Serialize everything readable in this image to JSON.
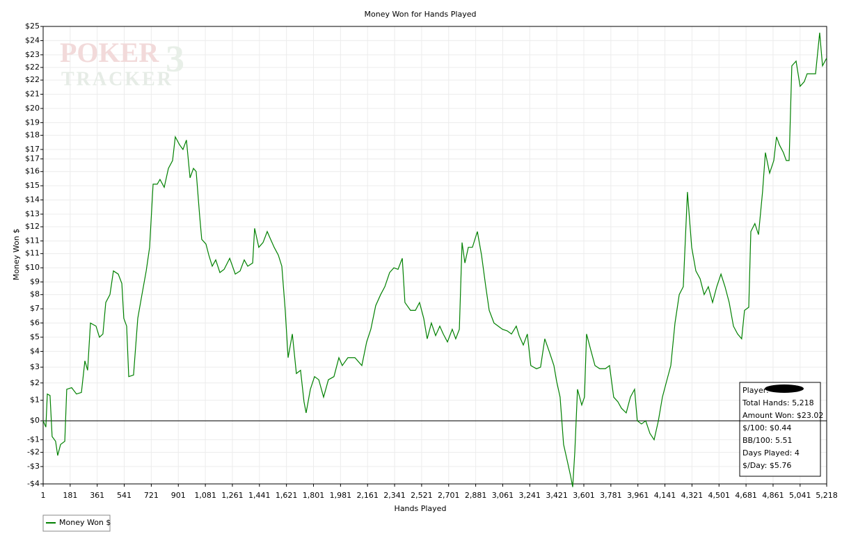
{
  "chart_data": {
    "type": "line",
    "title": "Money Won for Hands Played",
    "xlabel": "Hands Played",
    "ylabel": "Money Won $",
    "watermark": [
      "POKER",
      "TRACKER",
      "3"
    ],
    "xlim": [
      1,
      5218
    ],
    "ylim": [
      -4,
      25
    ],
    "xticks": [
      1,
      181,
      361,
      541,
      721,
      901,
      {
        "value": 1081,
        "label": "1,081"
      },
      {
        "value": 1261,
        "label": "1,261"
      },
      {
        "value": 1441,
        "label": "1,441"
      },
      {
        "value": 1621,
        "label": "1,621"
      },
      {
        "value": 1801,
        "label": "1,801"
      },
      {
        "value": 1981,
        "label": "1,981"
      },
      {
        "value": 2161,
        "label": "2,161"
      },
      {
        "value": 2341,
        "label": "2,341"
      },
      {
        "value": 2521,
        "label": "2,521"
      },
      {
        "value": 2701,
        "label": "2,701"
      },
      {
        "value": 2881,
        "label": "2,881"
      },
      {
        "value": 3061,
        "label": "3,061"
      },
      {
        "value": 3241,
        "label": "3,241"
      },
      {
        "value": 3421,
        "label": "3,421"
      },
      {
        "value": 3601,
        "label": "3,601"
      },
      {
        "value": 3781,
        "label": "3,781"
      },
      {
        "value": 3961,
        "label": "3,961"
      },
      {
        "value": 4141,
        "label": "4,141"
      },
      {
        "value": 4321,
        "label": "4,321"
      },
      {
        "value": 4501,
        "label": "4,501"
      },
      {
        "value": 4681,
        "label": "4,681"
      },
      {
        "value": 4861,
        "label": "4,861"
      },
      {
        "value": 5041,
        "label": "5,041"
      },
      {
        "value": 5218,
        "label": "5,218"
      }
    ],
    "yticks": [
      {
        "value": 25,
        "label": "$25"
      },
      {
        "value": 24.1,
        "label": "$24"
      },
      {
        "value": 23.2,
        "label": "$23"
      },
      {
        "value": 22.4,
        "label": "$22"
      },
      {
        "value": 21.6,
        "label": "$22"
      },
      {
        "value": 20.7,
        "label": "$21"
      },
      {
        "value": 19.8,
        "label": "$20"
      },
      {
        "value": 18.9,
        "label": "$19"
      },
      {
        "value": 18.1,
        "label": "$18"
      },
      {
        "value": 17.2,
        "label": "$17"
      },
      {
        "value": 16.6,
        "label": "$17"
      },
      {
        "value": 15.8,
        "label": "$16"
      },
      {
        "value": 14.9,
        "label": "$15"
      },
      {
        "value": 14,
        "label": "$14"
      },
      {
        "value": 13.1,
        "label": "$13"
      },
      {
        "value": 12.3,
        "label": "$12"
      },
      {
        "value": 11.4,
        "label": "$11"
      },
      {
        "value": 10.6,
        "label": "$11"
      },
      {
        "value": 9.7,
        "label": "$10"
      },
      {
        "value": 8.8,
        "label": "$9"
      },
      {
        "value": 8,
        "label": "$8"
      },
      {
        "value": 7.1,
        "label": "$7"
      },
      {
        "value": 6.2,
        "label": "$6"
      },
      {
        "value": 5.3,
        "label": "$5"
      },
      {
        "value": 4.4,
        "label": "$4"
      },
      {
        "value": 3.4,
        "label": "$3"
      },
      {
        "value": 2.4,
        "label": "$2"
      },
      {
        "value": 1.3,
        "label": "$1"
      },
      {
        "value": 0,
        "label": "$0"
      },
      {
        "value": -1.2,
        "label": "-$1"
      },
      {
        "value": -2,
        "label": "-$2"
      },
      {
        "value": -2.9,
        "label": "-$3"
      },
      {
        "value": -4,
        "label": "-$4"
      }
    ],
    "grid": true,
    "legend": "bottom-left",
    "x": [
      1,
      19,
      29,
      47,
      61,
      84,
      98,
      117,
      145,
      158,
      191,
      223,
      256,
      279,
      297,
      316,
      353,
      376,
      399,
      418,
      446,
      469,
      501,
      525,
      538,
      557,
      571,
      603,
      631,
      659,
      687,
      710,
      733,
      761,
      779,
      807,
      835,
      863,
      881,
      909,
      932,
      955,
      979,
      1002,
      1020,
      1043,
      1057,
      1085,
      1104,
      1127,
      1150,
      1178,
      1206,
      1243,
      1280,
      1312,
      1340,
      1363,
      1396,
      1409,
      1437,
      1465,
      1493,
      1511,
      1539,
      1567,
      1590,
      1613,
      1632,
      1660,
      1687,
      1715,
      1738,
      1752,
      1780,
      1808,
      1836,
      1868,
      1900,
      1937,
      1970,
      1993,
      2030,
      2077,
      2123,
      2155,
      2183,
      2215,
      2248,
      2276,
      2308,
      2336,
      2364,
      2392,
      2410,
      2447,
      2480,
      2507,
      2535,
      2558,
      2586,
      2614,
      2642,
      2665,
      2693,
      2725,
      2748,
      2772,
      2790,
      2809,
      2832,
      2859,
      2892,
      2920,
      2948,
      2971,
      3003,
      3031,
      3059,
      3091,
      3119,
      3151,
      3170,
      3198,
      3225,
      3248,
      3267,
      3286,
      3313,
      3341,
      3374,
      3402,
      3420,
      3443,
      3466,
      3490,
      3513,
      3527,
      3541,
      3559,
      3587,
      3605,
      3619,
      3647,
      3675,
      3707,
      3744,
      3772,
      3800,
      3828,
      3851,
      3883,
      3911,
      3939,
      3957,
      3985,
      4013,
      4041,
      4069,
      4097,
      4124,
      4152,
      4180,
      4208,
      4236,
      4263,
      4291,
      4319,
      4347,
      4375,
      4402,
      4430,
      4458,
      4486,
      4514,
      4541,
      4569,
      4597,
      4625,
      4652,
      4671,
      4699,
      4713,
      4740,
      4764,
      4791,
      4810,
      4838,
      4866,
      4884,
      4903,
      4930,
      4949,
      4968,
      4986,
      5014,
      5041,
      5069,
      5088,
      5116,
      5144,
      5171,
      5190,
      5218
    ],
    "series": [
      {
        "name": "Money Won $",
        "color": "#008000",
        "values": [
          0,
          -0.4,
          1.7,
          1.6,
          -1,
          -1.3,
          -2.2,
          -1.5,
          -1.3,
          2,
          2.1,
          1.7,
          1.8,
          3.8,
          3.2,
          6.2,
          6,
          5.3,
          5.5,
          7.5,
          8,
          9.5,
          9.3,
          8.7,
          6.5,
          6,
          2.8,
          2.9,
          6.5,
          8,
          9.5,
          11,
          15,
          15,
          15.3,
          14.8,
          16,
          16.5,
          18,
          17.5,
          17.2,
          17.8,
          15.4,
          16,
          15.8,
          13,
          11.5,
          11.2,
          10.5,
          9.8,
          10.2,
          9.4,
          9.6,
          10.3,
          9.3,
          9.5,
          10.2,
          9.8,
          10,
          12.2,
          11,
          11.3,
          12,
          11.6,
          11,
          10.5,
          9.8,
          7,
          4,
          5.5,
          3,
          3.2,
          1.2,
          0.5,
          2,
          2.8,
          2.6,
          1.5,
          2.6,
          2.8,
          4,
          3.5,
          4,
          4,
          3.5,
          5,
          5.8,
          7.3,
          8,
          8.5,
          9.4,
          9.7,
          9.6,
          10.3,
          7.5,
          7,
          7,
          7.5,
          6.5,
          5.2,
          6.2,
          5.4,
          6,
          5.5,
          5,
          5.8,
          5.2,
          5.8,
          11.3,
          10,
          11,
          11,
          12,
          10.5,
          8.5,
          7,
          6.2,
          6,
          5.8,
          5.7,
          5.5,
          6,
          5.4,
          4.8,
          5.5,
          3.5,
          3.4,
          3.3,
          3.4,
          5.2,
          4.3,
          3.5,
          2.5,
          1.5,
          -1.5,
          -2.5,
          -3.5,
          -4.2,
          -2,
          2,
          1,
          1.5,
          5.5,
          4.5,
          3.5,
          3.3,
          3.3,
          3.5,
          1.5,
          1.2,
          0.8,
          0.5,
          1.5,
          2,
          0,
          -0.2,
          0,
          -0.8,
          -1.2,
          0,
          1.5,
          2.5,
          3.5,
          6.2,
          8,
          8.5,
          14.5,
          11,
          9.5,
          9,
          8,
          8.5,
          7.5,
          8.5,
          9.3,
          8.5,
          7.5,
          6,
          5.5,
          5.2,
          7,
          7.2,
          12,
          12.5,
          11.8,
          14.5,
          17,
          15.7,
          16.5,
          18,
          17.5,
          17,
          16.5,
          16.5,
          22.5,
          22.8,
          21.2,
          21.5,
          22,
          22,
          22,
          24.6,
          22.5,
          23
        ]
      }
    ],
    "stats": [
      "Player:",
      "Total Hands: 5,218",
      "Amount Won: $23.02",
      "$/100: $0.44",
      "BB/100: 5.51",
      "Days Played: 4",
      "$/Day: $5.76"
    ]
  }
}
